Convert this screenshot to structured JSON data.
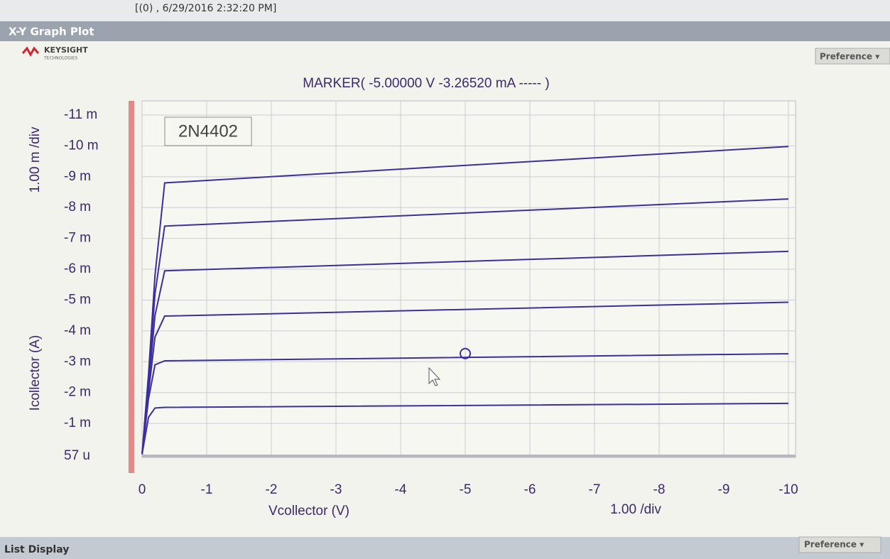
{
  "header": {
    "timestamp": "[(0) , 6/29/2016 2:32:20 PM]",
    "window_title": "X-Y Graph Plot",
    "brand": "KEYSIGHT",
    "brand_sub": "TECHNOLOGIES",
    "preference": "Preference ▾"
  },
  "chart_data": {
    "type": "line",
    "annotation": "MARKER(  -5.00000 V   -3.26520 mA  ----- )",
    "label": "2N4402",
    "ylabel": "Icollector (A)",
    "yscale_label": "1.00 m /div",
    "xlabel": "Vcollector (V)",
    "xscale_label": "1.00 /div",
    "x": [
      0,
      -0.1,
      -0.2,
      -0.35,
      -10
    ],
    "series": [
      {
        "color": "#3b2f9e",
        "values": [
          0,
          -0.0012,
          -0.0015,
          -0.00152,
          -0.00165
        ]
      },
      {
        "color": "#3b2f9e",
        "values": [
          0,
          -0.0018,
          -0.0029,
          -0.00303,
          -0.00326
        ]
      },
      {
        "color": "#3b2f9e",
        "values": [
          0,
          -0.002,
          -0.0038,
          -0.00448,
          -0.00493
        ]
      },
      {
        "color": "#3b2f9e",
        "values": [
          0,
          -0.0022,
          -0.0045,
          -0.00595,
          -0.00658
        ]
      },
      {
        "color": "#3b2f9e",
        "values": [
          0,
          -0.0024,
          -0.0052,
          -0.0074,
          -0.00828
        ]
      },
      {
        "color": "#3b2f9e",
        "values": [
          0,
          -0.0026,
          -0.0058,
          -0.0088,
          -0.00998
        ]
      }
    ],
    "marker": {
      "x": -5,
      "y": -0.0032652
    },
    "xlim": [
      0,
      -10
    ],
    "ylim": [
      5.7e-05,
      -0.011
    ],
    "xticks": [
      0,
      -1,
      -2,
      -3,
      -4,
      -5,
      -6,
      -7,
      -8,
      -9,
      -10
    ],
    "yticks": [
      {
        "value": 5.7e-05,
        "label": "57 u"
      },
      {
        "value": -0.001,
        "label": "-1 m"
      },
      {
        "value": -0.002,
        "label": "-2 m"
      },
      {
        "value": -0.003,
        "label": "-3 m"
      },
      {
        "value": -0.004,
        "label": "-4 m"
      },
      {
        "value": -0.005,
        "label": "-5 m"
      },
      {
        "value": -0.006,
        "label": "-6 m"
      },
      {
        "value": -0.007,
        "label": "-7 m"
      },
      {
        "value": -0.008,
        "label": "-8 m"
      },
      {
        "value": -0.009,
        "label": "-9 m"
      },
      {
        "value": -0.01,
        "label": "-10 m"
      },
      {
        "value": -0.011,
        "label": "-11 m"
      }
    ],
    "grid": true
  },
  "footer": {
    "title": "List Display",
    "preference": "Preference ▾"
  }
}
